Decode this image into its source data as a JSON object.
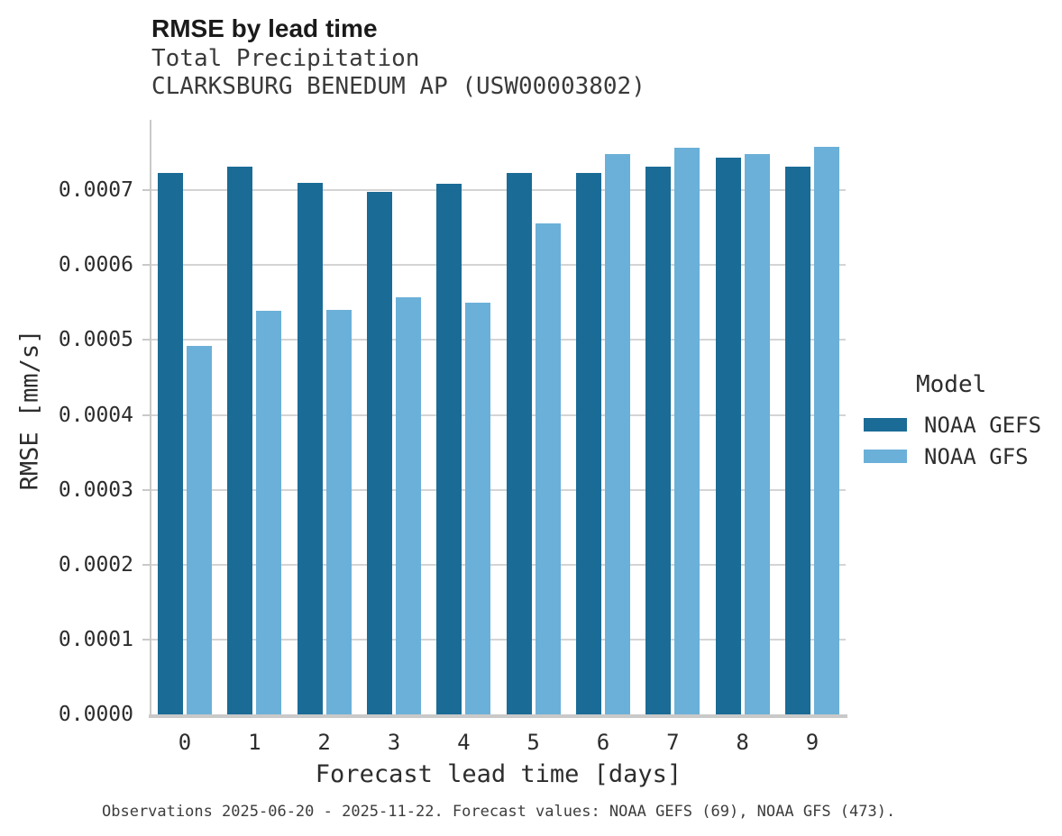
{
  "chart_data": {
    "type": "bar",
    "title": "RMSE by lead time",
    "subtitle": [
      "Total Precipitation",
      "CLARKSBURG BENEDUM AP (USW00003802)"
    ],
    "xlabel": "Forecast lead time [days]",
    "ylabel": "RMSE [mm/s]",
    "categories": [
      "0",
      "1",
      "2",
      "3",
      "4",
      "5",
      "6",
      "7",
      "8",
      "9"
    ],
    "series": [
      {
        "name": "NOAA GEFS",
        "color": "#1A6B96",
        "values": [
          0.000723,
          0.000731,
          0.00071,
          0.000698,
          0.000709,
          0.000723,
          0.000723,
          0.000732,
          0.000744,
          0.000732
        ]
      },
      {
        "name": "NOAA GFS",
        "color": "#6BB0D8",
        "values": [
          0.000492,
          0.000539,
          0.00054,
          0.000557,
          0.00055,
          0.000656,
          0.000748,
          0.000757,
          0.000748,
          0.000758
        ]
      }
    ],
    "ylim": [
      0,
      0.000794
    ],
    "yticks": [
      0,
      0.0001,
      0.0002,
      0.0003,
      0.0004,
      0.0005,
      0.0006,
      0.0007
    ],
    "ytick_labels": [
      "0.0000",
      "0.0001",
      "0.0002",
      "0.0003",
      "0.0004",
      "0.0005",
      "0.0006",
      "0.0007"
    ],
    "grid": "horizontal",
    "legend": {
      "title": "Model",
      "position": "right"
    },
    "caption": "Observations 2025-06-20 - 2025-11-22. Forecast values: NOAA GEFS (69), NOAA GFS (473)."
  },
  "colors": {
    "gefs_bar": "#1A6B96",
    "gfs_bar": "#6BB0D8",
    "gridline": "#D4D4D4",
    "axis_line": "#C9C9C9",
    "title_text": "#1A1A1A",
    "subtitle_text": "#3A3A3A",
    "tick_text": "#2D2D2D",
    "caption_text": "#3D3D3D"
  }
}
